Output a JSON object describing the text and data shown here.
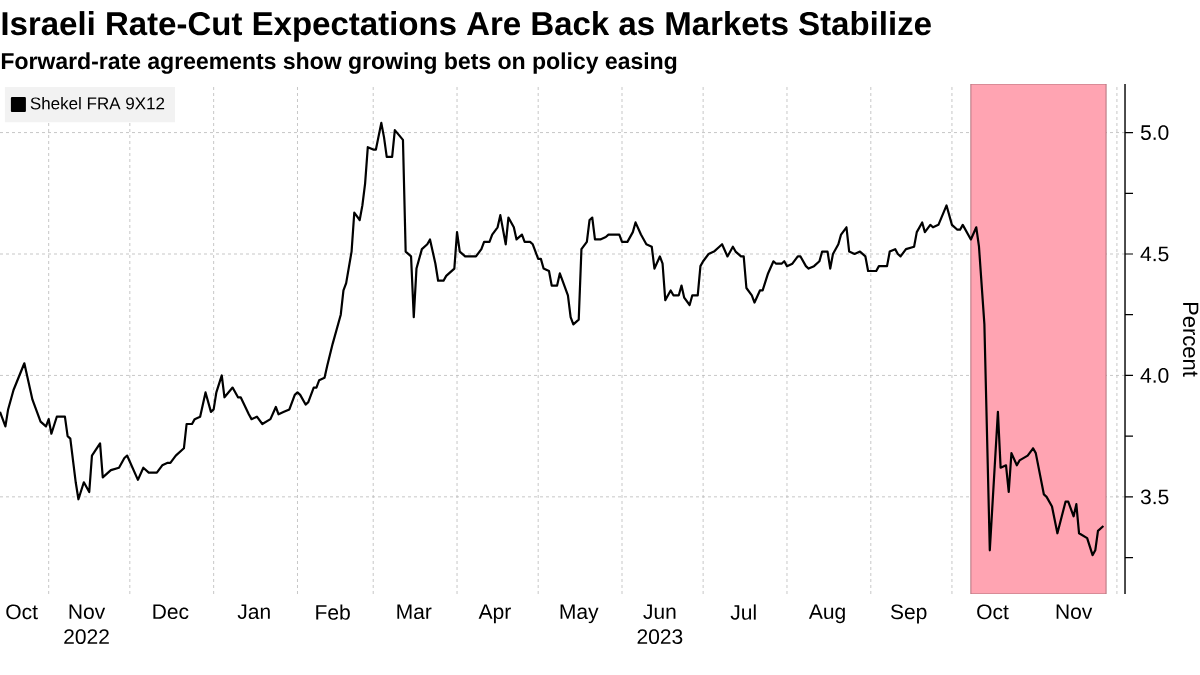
{
  "chart_data": {
    "type": "line",
    "title": "Israeli Rate-Cut Expectations Are Back as Markets Stabilize",
    "subtitle": "Forward-rate agreements show growing bets on policy easing",
    "ylabel": "Percent",
    "x": [
      "2022-10-14",
      "2022-10-16",
      "2022-10-17",
      "2022-10-19",
      "2022-10-23",
      "2022-10-26",
      "2022-10-29",
      "2022-10-31",
      "2022-11-01",
      "2022-11-02",
      "2022-11-04",
      "2022-11-07",
      "2022-11-08",
      "2022-11-09",
      "2022-11-11",
      "2022-11-12",
      "2022-11-14",
      "2022-11-16",
      "2022-11-17",
      "2022-11-20",
      "2022-11-21",
      "2022-11-24",
      "2022-11-27",
      "2022-11-29",
      "2022-11-30",
      "2022-12-04",
      "2022-12-06",
      "2022-12-08",
      "2022-12-11",
      "2022-12-13",
      "2022-12-15",
      "2022-12-16",
      "2022-12-18",
      "2022-12-21",
      "2022-12-22",
      "2022-12-24",
      "2022-12-25",
      "2022-12-27",
      "2022-12-29",
      "2022-12-31",
      "2023-01-01",
      "2023-01-02",
      "2023-01-04",
      "2023-01-05",
      "2023-01-08",
      "2023-01-10",
      "2023-01-11",
      "2023-01-14",
      "2023-01-15",
      "2023-01-17",
      "2023-01-19",
      "2023-01-22",
      "2023-01-24",
      "2023-01-25",
      "2023-01-27",
      "2023-01-29",
      "2023-01-31",
      "2023-02-01",
      "2023-02-02",
      "2023-02-04",
      "2023-02-05",
      "2023-02-07",
      "2023-02-08",
      "2023-02-09",
      "2023-02-11",
      "2023-02-12",
      "2023-02-14",
      "2023-02-17",
      "2023-02-18",
      "2023-02-19",
      "2023-02-21",
      "2023-02-22",
      "2023-02-24",
      "2023-02-25",
      "2023-02-26",
      "2023-02-27",
      "2023-03-01",
      "2023-03-02",
      "2023-03-04",
      "2023-03-05",
      "2023-03-06",
      "2023-03-08",
      "2023-03-09",
      "2023-03-12",
      "2023-03-13",
      "2023-03-15",
      "2023-03-16",
      "2023-03-17",
      "2023-03-19",
      "2023-03-20",
      "2023-03-21",
      "2023-03-22",
      "2023-03-24",
      "2023-03-25",
      "2023-03-27",
      "2023-03-28",
      "2023-03-31",
      "2023-04-01",
      "2023-04-02",
      "2023-04-04",
      "2023-04-08",
      "2023-04-10",
      "2023-04-11",
      "2023-04-13",
      "2023-04-14",
      "2023-04-16",
      "2023-04-17",
      "2023-04-19",
      "2023-04-20",
      "2023-04-22",
      "2023-04-23",
      "2023-04-25",
      "2023-04-26",
      "2023-04-28",
      "2023-04-29",
      "2023-05-01",
      "2023-05-02",
      "2023-05-03",
      "2023-05-05",
      "2023-05-06",
      "2023-05-08",
      "2023-05-09",
      "2023-05-10",
      "2023-05-12",
      "2023-05-13",
      "2023-05-14",
      "2023-05-16",
      "2023-05-17",
      "2023-05-19",
      "2023-05-20",
      "2023-05-21",
      "2023-05-22",
      "2023-05-24",
      "2023-05-26",
      "2023-05-27",
      "2023-05-31",
      "2023-06-01",
      "2023-06-03",
      "2023-06-05",
      "2023-06-06",
      "2023-06-08",
      "2023-06-10",
      "2023-06-12",
      "2023-06-13",
      "2023-06-15",
      "2023-06-16",
      "2023-06-17",
      "2023-06-19",
      "2023-06-20",
      "2023-06-22",
      "2023-06-23",
      "2023-06-24",
      "2023-06-26",
      "2023-06-27",
      "2023-06-29",
      "2023-06-30",
      "2023-07-01",
      "2023-07-03",
      "2023-07-05",
      "2023-07-07",
      "2023-07-08",
      "2023-07-10",
      "2023-07-12",
      "2023-07-13",
      "2023-07-15",
      "2023-07-16",
      "2023-07-17",
      "2023-07-19",
      "2023-07-20",
      "2023-07-22",
      "2023-07-23",
      "2023-07-25",
      "2023-07-27",
      "2023-07-28",
      "2023-07-30",
      "2023-07-31",
      "2023-08-01",
      "2023-08-03",
      "2023-08-05",
      "2023-08-06",
      "2023-08-08",
      "2023-08-09",
      "2023-08-11",
      "2023-08-13",
      "2023-08-14",
      "2023-08-16",
      "2023-08-17",
      "2023-08-18",
      "2023-08-20",
      "2023-08-21",
      "2023-08-23",
      "2023-08-24",
      "2023-08-26",
      "2023-08-28",
      "2023-08-30",
      "2023-08-31",
      "2023-09-03",
      "2023-09-04",
      "2023-09-07",
      "2023-09-08",
      "2023-09-10",
      "2023-09-11",
      "2023-09-12",
      "2023-09-14",
      "2023-09-17",
      "2023-09-18",
      "2023-09-20",
      "2023-09-21",
      "2023-09-23",
      "2023-09-24",
      "2023-09-26",
      "2023-09-29",
      "2023-10-01",
      "2023-10-03",
      "2023-10-04",
      "2023-10-05",
      "2023-10-08",
      "2023-10-10",
      "2023-10-11",
      "2023-10-13",
      "2023-10-15",
      "2023-10-18",
      "2023-10-19",
      "2023-10-21",
      "2023-10-22",
      "2023-10-23",
      "2023-10-25",
      "2023-10-26",
      "2023-10-29",
      "2023-10-31",
      "2023-11-01",
      "2023-11-04",
      "2023-11-05",
      "2023-11-07",
      "2023-11-09",
      "2023-11-12",
      "2023-11-13",
      "2023-11-15",
      "2023-11-16",
      "2023-11-17",
      "2023-11-20",
      "2023-11-22",
      "2023-11-23",
      "2023-11-24",
      "2023-11-26"
    ],
    "series": [
      {
        "name": "Shekel FRA 9X12",
        "color": "#000000",
        "values": [
          3.85,
          3.79,
          3.86,
          3.94,
          4.05,
          3.9,
          3.81,
          3.79,
          3.82,
          3.76,
          3.83,
          3.83,
          3.75,
          3.74,
          3.56,
          3.49,
          3.56,
          3.52,
          3.67,
          3.72,
          3.58,
          3.61,
          3.62,
          3.66,
          3.67,
          3.57,
          3.62,
          3.6,
          3.6,
          3.63,
          3.64,
          3.64,
          3.67,
          3.7,
          3.8,
          3.8,
          3.82,
          3.83,
          3.93,
          3.85,
          3.86,
          3.93,
          4.0,
          3.91,
          3.95,
          3.91,
          3.91,
          3.84,
          3.82,
          3.83,
          3.8,
          3.82,
          3.87,
          3.84,
          3.85,
          3.86,
          3.92,
          3.93,
          3.92,
          3.88,
          3.89,
          3.95,
          3.95,
          3.98,
          3.99,
          4.04,
          4.13,
          4.25,
          4.35,
          4.38,
          4.51,
          4.67,
          4.64,
          4.7,
          4.79,
          4.94,
          4.93,
          4.93,
          5.04,
          4.98,
          4.9,
          4.9,
          5.01,
          4.97,
          4.51,
          4.49,
          4.24,
          4.44,
          4.52,
          4.53,
          4.54,
          4.56,
          4.46,
          4.39,
          4.39,
          4.41,
          4.44,
          4.59,
          4.51,
          4.49,
          4.49,
          4.52,
          4.55,
          4.55,
          4.58,
          4.61,
          4.66,
          4.54,
          4.65,
          4.61,
          4.56,
          4.58,
          4.55,
          4.55,
          4.54,
          4.48,
          4.48,
          4.44,
          4.43,
          4.37,
          4.37,
          4.42,
          4.39,
          4.33,
          4.24,
          4.21,
          4.23,
          4.52,
          4.55,
          4.64,
          4.65,
          4.56,
          4.56,
          4.57,
          4.58,
          4.58,
          4.55,
          4.55,
          4.59,
          4.63,
          4.58,
          4.54,
          4.53,
          4.44,
          4.49,
          4.46,
          4.31,
          4.35,
          4.33,
          4.33,
          4.37,
          4.32,
          4.29,
          4.33,
          4.33,
          4.45,
          4.47,
          4.5,
          4.51,
          4.53,
          4.54,
          4.49,
          4.53,
          4.51,
          4.49,
          4.49,
          4.36,
          4.33,
          4.3,
          4.35,
          4.35,
          4.42,
          4.47,
          4.46,
          4.46,
          4.47,
          4.45,
          4.46,
          4.49,
          4.49,
          4.45,
          4.44,
          4.45,
          4.47,
          4.51,
          4.51,
          4.44,
          4.5,
          4.54,
          4.58,
          4.61,
          4.51,
          4.5,
          4.51,
          4.49,
          4.43,
          4.43,
          4.45,
          4.45,
          4.51,
          4.52,
          4.5,
          4.49,
          4.52,
          4.53,
          4.59,
          4.63,
          4.59,
          4.62,
          4.61,
          4.62,
          4.7,
          4.62,
          4.6,
          4.6,
          4.62,
          4.56,
          4.61,
          4.53,
          4.21,
          3.28,
          3.85,
          3.62,
          3.63,
          3.52,
          3.68,
          3.63,
          3.65,
          3.67,
          3.7,
          3.68,
          3.51,
          3.5,
          3.46,
          3.35,
          3.48,
          3.48,
          3.42,
          3.47,
          3.35,
          3.33,
          3.26,
          3.28,
          3.36,
          3.38
        ]
      }
    ],
    "xlim": [
      "2022-10-14",
      "2023-12-04"
    ],
    "xticks": [
      {
        "value": "2022-10-22",
        "label": "Oct"
      },
      {
        "value": "2022-11-01",
        "label": null
      },
      {
        "value": "2022-11-15",
        "label": "Nov 2022"
      },
      {
        "value": "2022-12-01",
        "label": null
      },
      {
        "value": "2022-12-16",
        "label": "Dec"
      },
      {
        "value": "2023-01-01",
        "label": null
      },
      {
        "value": "2023-01-16",
        "label": "Jan"
      },
      {
        "value": "2023-02-01",
        "label": null
      },
      {
        "value": "2023-02-14",
        "label": "Feb"
      },
      {
        "value": "2023-03-01",
        "label": null
      },
      {
        "value": "2023-03-16",
        "label": "Mar"
      },
      {
        "value": "2023-04-01",
        "label": null
      },
      {
        "value": "2023-04-15",
        "label": "Apr"
      },
      {
        "value": "2023-05-01",
        "label": null
      },
      {
        "value": "2023-05-16",
        "label": "May"
      },
      {
        "value": "2023-06-01",
        "label": null
      },
      {
        "value": "2023-06-15",
        "label": "Jun 2023"
      },
      {
        "value": "2023-07-01",
        "label": null
      },
      {
        "value": "2023-07-16",
        "label": "Jul"
      },
      {
        "value": "2023-08-01",
        "label": null
      },
      {
        "value": "2023-08-16",
        "label": "Aug"
      },
      {
        "value": "2023-09-01",
        "label": null
      },
      {
        "value": "2023-09-15",
        "label": "Sep"
      },
      {
        "value": "2023-10-01",
        "label": null
      },
      {
        "value": "2023-10-16",
        "label": "Oct"
      },
      {
        "value": "2023-11-01",
        "label": null
      },
      {
        "value": "2023-11-15",
        "label": "Nov"
      },
      {
        "value": "2023-12-01",
        "label": null
      }
    ],
    "ylim": [
      3.1,
      5.2
    ],
    "yticks": [
      {
        "value": 3.25,
        "label": null
      },
      3.5,
      {
        "value": 3.75,
        "label": null
      },
      {
        "value": 4,
        "label": "4.0"
      },
      {
        "value": 4.25,
        "label": null
      },
      4.5,
      {
        "value": 4.75,
        "label": null
      },
      {
        "value": 5,
        "label": "5.0"
      }
    ],
    "bands": [
      {
        "axis": "x",
        "from": "2023-10-08",
        "to": "2023-11-27",
        "color": "#ffa4b2"
      }
    ],
    "grid": true,
    "legend": "top left"
  }
}
